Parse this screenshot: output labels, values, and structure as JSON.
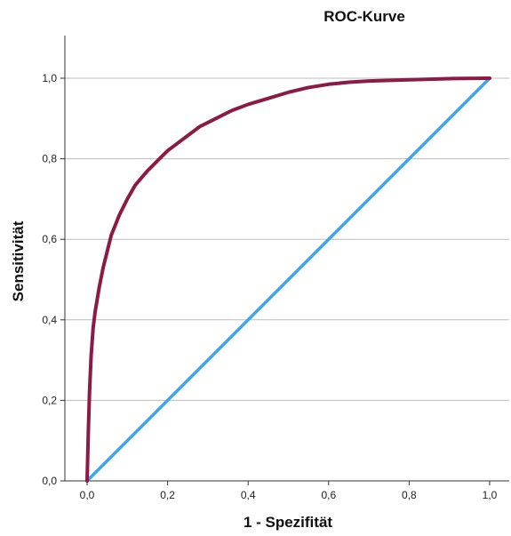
{
  "chart_data": {
    "type": "line",
    "title": "ROC-Kurve",
    "xlabel": "1 - Spezifität",
    "ylabel": "Sensitivität",
    "xlim": [
      0,
      1
    ],
    "ylim": [
      0,
      1
    ],
    "x_ticks": [
      "0,0",
      "0,2",
      "0,4",
      "0,6",
      "0,8",
      "1,0"
    ],
    "y_ticks": [
      "0,0",
      "0,2",
      "0,4",
      "0,6",
      "0,8",
      "1,0"
    ],
    "grid": "horizontal",
    "legend": "none",
    "series": [
      {
        "color": "#8b1a45",
        "x": [
          0.0,
          0.003,
          0.006,
          0.01,
          0.015,
          0.02,
          0.03,
          0.04,
          0.05,
          0.06,
          0.08,
          0.1,
          0.12,
          0.15,
          0.18,
          0.2,
          0.24,
          0.28,
          0.32,
          0.36,
          0.4,
          0.45,
          0.5,
          0.55,
          0.6,
          0.65,
          0.7,
          0.8,
          0.9,
          1.0
        ],
        "y": [
          0.0,
          0.12,
          0.22,
          0.31,
          0.38,
          0.42,
          0.48,
          0.53,
          0.57,
          0.61,
          0.66,
          0.7,
          0.735,
          0.77,
          0.8,
          0.82,
          0.85,
          0.88,
          0.9,
          0.92,
          0.935,
          0.95,
          0.965,
          0.977,
          0.985,
          0.99,
          0.993,
          0.996,
          0.999,
          1.0
        ]
      },
      {
        "color": "#3ba6e8",
        "x": [
          0.0,
          1.0
        ],
        "y": [
          0.0,
          1.0
        ]
      }
    ]
  }
}
